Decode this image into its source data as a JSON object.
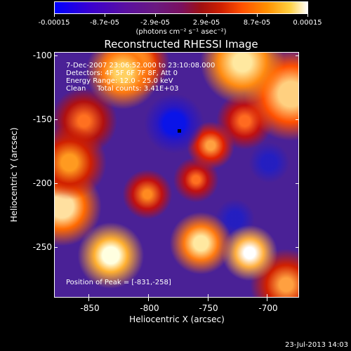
{
  "colorbar": {
    "tick_labels": [
      "-0.00015",
      "-8.7e-05",
      "-2.9e-05",
      "2.9e-05",
      "8.7e-05",
      "0.00015"
    ],
    "units": "(photons cm⁻² s⁻¹ asec⁻²)"
  },
  "plot": {
    "title": "Reconstructed RHESSI Image",
    "info_lines": [
      "7-Dec-2007 23:06:52.000 to 23:10:08.000",
      "Detectors: 4F 5F 6F 7F 8F, Att 0",
      "Energy Range: 12.0 - 25.0 keV",
      "Clean     Total counts: 3.41E+03"
    ],
    "peak_text": "Position of Peak = [-831,-258]",
    "xlabel": "Heliocentric X (arcsec)",
    "ylabel": "Heliocentric Y (arcsec)",
    "x_ticks": [
      "-850",
      "-800",
      "-750",
      "-700"
    ],
    "y_ticks": [
      "-100",
      "-150",
      "-200",
      "-250"
    ]
  },
  "timestamp": "23-Jul-2013 14:03"
}
